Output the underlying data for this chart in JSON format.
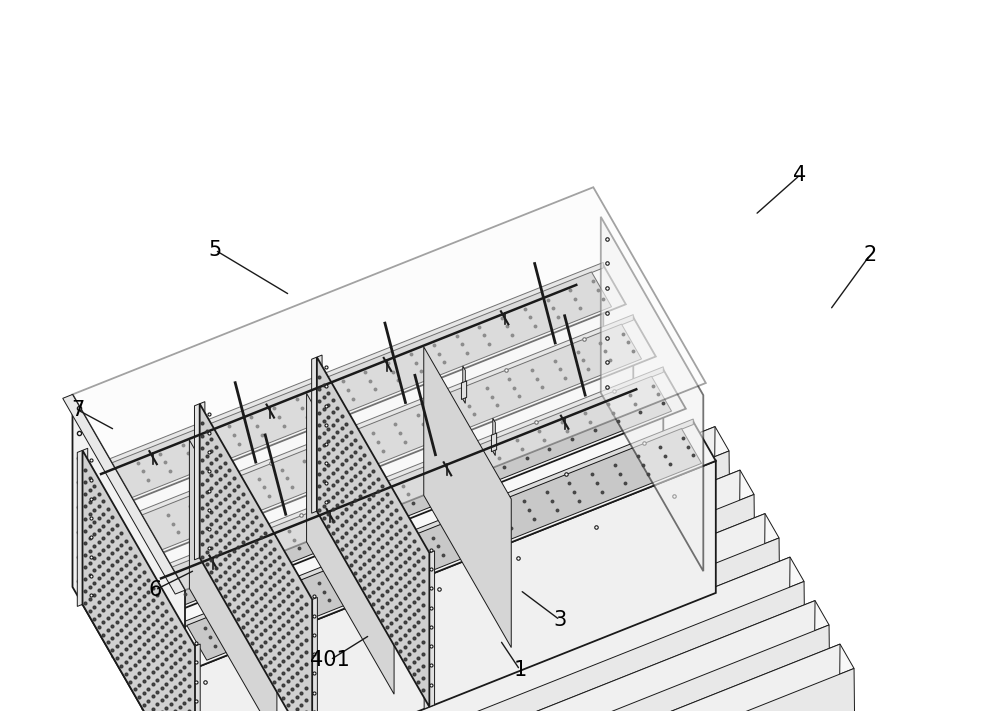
{
  "background_color": "#ffffff",
  "line_color": "#1a1a1a",
  "label_color": "#000000",
  "fig_width": 10.0,
  "fig_height": 7.11,
  "dpi": 100,
  "label_fontsize": 15,
  "lw_main": 1.3,
  "lw_thin": 0.7,
  "lw_thick": 1.8,
  "face_white": "#ffffff",
  "face_light": "#f0f0f0",
  "face_mid": "#e0e0e0",
  "face_dark": "#c8c8c8",
  "face_mesh": "#d8d8d8",
  "face_mesh_dark": "#909090"
}
